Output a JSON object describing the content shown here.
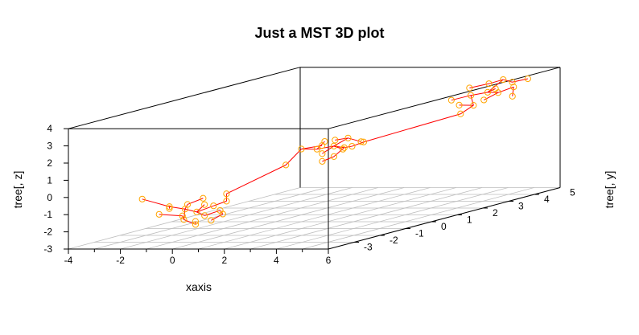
{
  "chart_data": {
    "type": "scatter",
    "subtype": "scatter3d-minimum-spanning-tree",
    "title": "Just a MST 3D plot",
    "xlabel": "xaxis",
    "ylabel": "tree[, y]",
    "zlabel": "tree[, z]",
    "xlim": [
      -4,
      6
    ],
    "ylim": [
      -4,
      5
    ],
    "zlim": [
      -3,
      4
    ],
    "x_ticks": [
      "-4",
      "-2",
      "0",
      "2",
      "4",
      "6"
    ],
    "y_ticks": [
      "-3",
      "-2",
      "-1",
      "0",
      "1",
      "2",
      "3",
      "4",
      "5"
    ],
    "z_ticks": [
      "-3",
      "-2",
      "-1",
      "0",
      "1",
      "2",
      "3",
      "4"
    ],
    "grid": "xy-floor",
    "box": true,
    "colors": {
      "points": "#ffa500",
      "edges": "#ff0000",
      "axes": "#000000",
      "grid": "#bebebe"
    },
    "clusters": [
      {
        "center": [
          -0.45,
          -2.6,
          -1.4
        ],
        "points": [
          [
            -0.45,
            -2.6,
            -1.4
          ],
          [
            -0.95,
            -2.55,
            -1.25
          ],
          [
            -1.4,
            -2.7,
            -1.05
          ],
          [
            -2.3,
            -2.85,
            -0.55
          ],
          [
            -1.75,
            -2.35,
            -1.3
          ],
          [
            0.0,
            -2.75,
            -1.55
          ],
          [
            0.35,
            -2.5,
            -1.35
          ],
          [
            -0.2,
            -2.2,
            -1.2
          ],
          [
            -0.6,
            -2.95,
            -1.7
          ],
          [
            -0.05,
            -3.05,
            -1.95
          ],
          [
            0.6,
            -2.65,
            -1.5
          ],
          [
            0.25,
            -2.15,
            -0.95
          ],
          [
            -1.15,
            -2.25,
            -1.1
          ],
          [
            -0.8,
            -2.8,
            -1.55
          ],
          [
            -0.35,
            -2.4,
            -1.05
          ],
          [
            0.05,
            -1.95,
            -0.6
          ],
          [
            -1.55,
            -2.95,
            -1.4
          ],
          [
            -0.7,
            -2.1,
            -0.8
          ],
          [
            0.45,
            -2.95,
            -1.75
          ],
          [
            -0.25,
            -2.85,
            -1.85
          ]
        ],
        "edges": [
          [
            0,
            1
          ],
          [
            1,
            2
          ],
          [
            2,
            3
          ],
          [
            2,
            4
          ],
          [
            0,
            5
          ],
          [
            5,
            6
          ],
          [
            0,
            7
          ],
          [
            1,
            8
          ],
          [
            8,
            9
          ],
          [
            6,
            10
          ],
          [
            7,
            11
          ],
          [
            1,
            12
          ],
          [
            8,
            13
          ],
          [
            0,
            14
          ],
          [
            11,
            15
          ],
          [
            13,
            16
          ],
          [
            12,
            17
          ],
          [
            10,
            18
          ],
          [
            9,
            19
          ]
        ]
      },
      {
        "center": [
          2.0,
          0.25,
          1.3
        ],
        "points": [
          [
            2.0,
            0.25,
            1.3
          ],
          [
            1.55,
            0.05,
            1.2
          ],
          [
            1.05,
            -0.05,
            1.25
          ],
          [
            0.65,
            -0.25,
            0.4
          ],
          [
            2.5,
            0.15,
            1.25
          ],
          [
            2.85,
            0.1,
            1.35
          ],
          [
            2.25,
            0.55,
            1.65
          ],
          [
            1.8,
            0.5,
            1.55
          ],
          [
            2.4,
            -0.15,
            0.85
          ],
          [
            2.15,
            -0.35,
            0.65
          ],
          [
            1.6,
            0.3,
            1.55
          ],
          [
            3.05,
            0.35,
            1.5
          ],
          [
            1.35,
            0.45,
            1.25
          ],
          [
            2.65,
            0.65,
            1.4
          ],
          [
            1.9,
            -0.1,
            1.0
          ],
          [
            2.3,
            0.3,
            1.1
          ]
        ],
        "edges": [
          [
            0,
            1
          ],
          [
            1,
            2
          ],
          [
            2,
            3
          ],
          [
            0,
            4
          ],
          [
            4,
            5
          ],
          [
            0,
            6
          ],
          [
            6,
            7
          ],
          [
            4,
            8
          ],
          [
            8,
            9
          ],
          [
            1,
            10
          ],
          [
            5,
            11
          ],
          [
            2,
            12
          ],
          [
            6,
            13
          ],
          [
            0,
            14
          ],
          [
            0,
            15
          ]
        ]
      },
      {
        "center": [
          4.6,
          3.6,
          3.1
        ],
        "points": [
          [
            4.6,
            3.6,
            3.1
          ],
          [
            4.15,
            3.4,
            3.0
          ],
          [
            3.6,
            3.2,
            2.8
          ],
          [
            5.05,
            3.55,
            3.1
          ],
          [
            5.45,
            3.75,
            3.35
          ],
          [
            4.85,
            3.95,
            3.7
          ],
          [
            4.4,
            3.85,
            3.5
          ],
          [
            4.45,
            3.2,
            2.5
          ],
          [
            4.2,
            2.95,
            2.1
          ],
          [
            5.75,
            3.4,
            2.95
          ],
          [
            3.9,
            3.6,
            3.35
          ],
          [
            5.2,
            3.95,
            3.55
          ],
          [
            4.95,
            3.1,
            2.85
          ],
          [
            5.55,
            4.2,
            3.65
          ],
          [
            4.0,
            3.1,
            2.55
          ],
          [
            4.75,
            3.75,
            3.25
          ]
        ],
        "edges": [
          [
            0,
            1
          ],
          [
            1,
            2
          ],
          [
            0,
            3
          ],
          [
            3,
            4
          ],
          [
            0,
            5
          ],
          [
            5,
            6
          ],
          [
            1,
            7
          ],
          [
            7,
            8
          ],
          [
            4,
            9
          ],
          [
            6,
            10
          ],
          [
            5,
            11
          ],
          [
            3,
            12
          ],
          [
            11,
            13
          ],
          [
            7,
            14
          ],
          [
            0,
            15
          ]
        ]
      }
    ],
    "bridges": [
      {
        "from_cluster": 0,
        "from_point": 15,
        "to_cluster": 1,
        "to_point": 3
      },
      {
        "from_cluster": 1,
        "from_point": 11,
        "to_cluster": 2,
        "to_point": 8
      }
    ]
  }
}
